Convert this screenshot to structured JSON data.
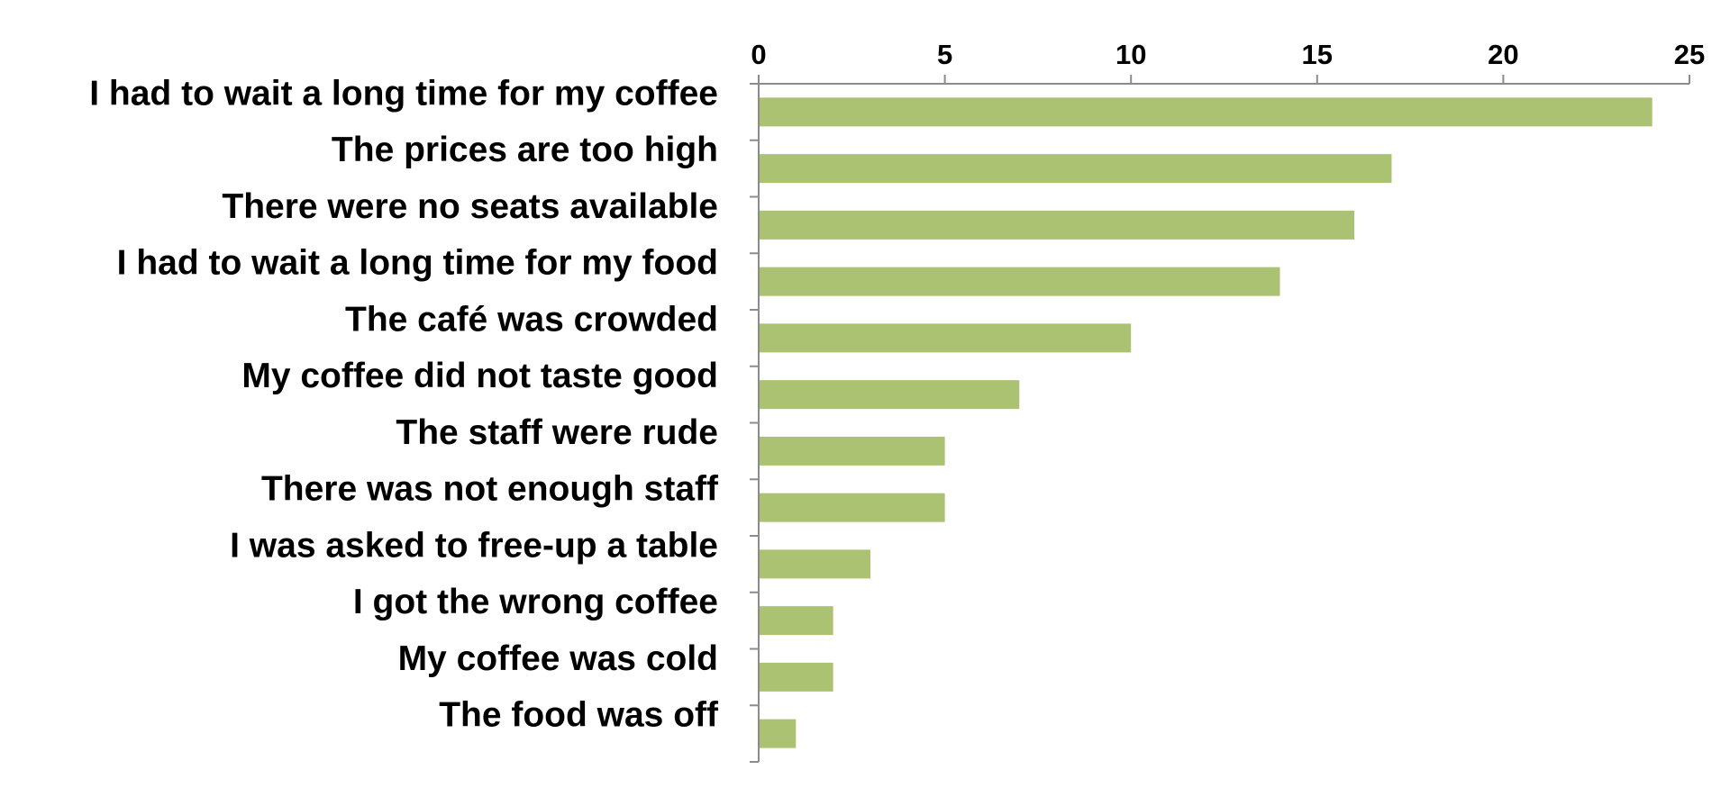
{
  "chart_data": {
    "type": "bar",
    "orientation": "horizontal",
    "categories": [
      "I had to wait a long time for my coffee",
      "The prices are too high",
      "There were no seats available",
      "I had to wait a long time for my food",
      "The café was crowded",
      "My coffee did not taste good",
      "The staff were rude",
      "There was not enough staff",
      "I was asked to free-up a table",
      "I got the wrong coffee",
      "My coffee was cold",
      "The food was off"
    ],
    "values": [
      24,
      17,
      16,
      14,
      10,
      7,
      5,
      5,
      3,
      2,
      2,
      1
    ],
    "title": "",
    "xlabel": "",
    "ylabel": "",
    "xlim": [
      0,
      25
    ],
    "x_ticks": [
      0,
      5,
      10,
      15,
      20,
      25
    ],
    "x_axis_position": "top",
    "grid": false,
    "legend": "none",
    "colors": {
      "bar": "#aac272",
      "axis": "#8c8c8c",
      "text": "#000000"
    }
  }
}
